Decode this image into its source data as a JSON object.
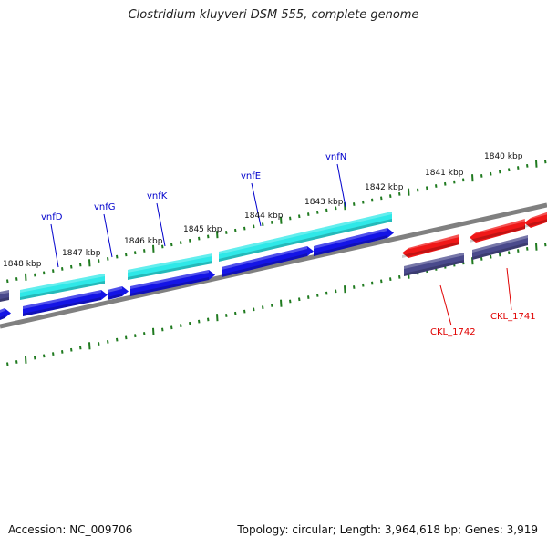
{
  "title": "Clostridium kluyveri DSM 555, complete genome",
  "footer": {
    "accession": "Accession: NC_009706",
    "summary": "Topology: circular; Length: 3,964,618 bp; Genes: 3,919"
  },
  "colors": {
    "backbone": "#808080",
    "tick": "#1f7a1f",
    "forward_label": "#0000cc",
    "reverse_label": "#e00000",
    "cyan": "#2fe8e8",
    "blue": "#1414e6",
    "navy": "#4a4a8c",
    "red": "#f01818"
  },
  "kbp_labels": [
    "1848 kbp",
    "1847 kbp",
    "1846 kbp",
    "1845 kbp",
    "1844 kbp",
    "1843 kbp",
    "1842 kbp",
    "1841 kbp",
    "1840 kbp"
  ],
  "gene_labels": {
    "forward": [
      "vnfD",
      "vnfG",
      "vnfK",
      "vnfE",
      "vnfN"
    ],
    "reverse": [
      "CKL_1742",
      "CKL_1741"
    ]
  }
}
